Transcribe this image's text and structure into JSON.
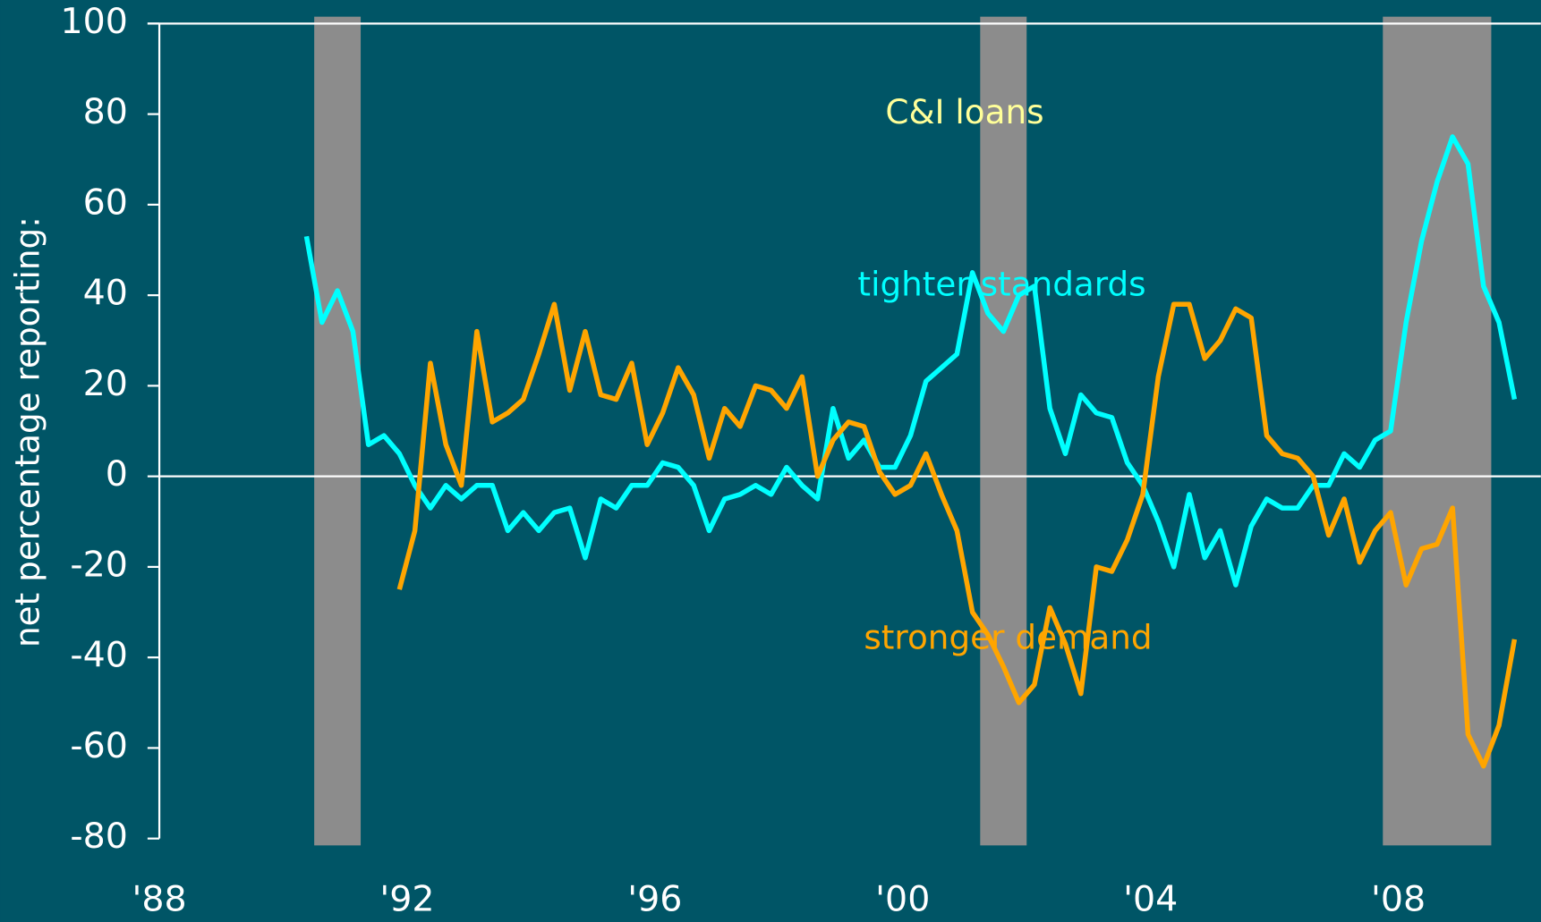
{
  "chart_data": {
    "type": "line",
    "ylabel": "net percentage reporting:",
    "annotations": [
      {
        "text": "C&I loans",
        "x": 2001.0,
        "y": 80,
        "color": "#ffff99"
      },
      {
        "text": "tighter standards",
        "x": 2001.6,
        "y": 42,
        "color": "#00ffff"
      },
      {
        "text": "stronger demand",
        "x": 2001.7,
        "y": -36,
        "color": "#ffa500"
      }
    ],
    "xlim": [
      1988,
      2010.3
    ],
    "ylim": [
      -80,
      100
    ],
    "xticks": [
      {
        "value": 1988,
        "label": "'88"
      },
      {
        "value": 1992,
        "label": "'92"
      },
      {
        "value": 1996,
        "label": "'96"
      },
      {
        "value": 2000,
        "label": "'00"
      },
      {
        "value": 2004,
        "label": "'04"
      },
      {
        "value": 2008,
        "label": "'08"
      }
    ],
    "yticks": [
      -80,
      -60,
      -40,
      -20,
      0,
      20,
      40,
      60,
      80,
      100
    ],
    "recessions": [
      {
        "start": 1990.5,
        "end": 1991.25
      },
      {
        "start": 2001.25,
        "end": 2002.0
      },
      {
        "start": 2007.75,
        "end": 2009.5
      }
    ],
    "recession_color": "#8c8c8c",
    "series": [
      {
        "name": "tighter standards",
        "color": "#00ffff",
        "x": [
          1990.375,
          1990.625,
          1990.875,
          1991.125,
          1991.375,
          1991.625,
          1991.875,
          1992.125,
          1992.375,
          1992.625,
          1992.875,
          1993.125,
          1993.375,
          1993.625,
          1993.875,
          1994.125,
          1994.375,
          1994.625,
          1994.875,
          1995.125,
          1995.375,
          1995.625,
          1995.875,
          1996.125,
          1996.375,
          1996.625,
          1996.875,
          1997.125,
          1997.375,
          1997.625,
          1997.875,
          1998.125,
          1998.375,
          1998.625,
          1998.875,
          1999.125,
          1999.375,
          1999.625,
          1999.875,
          2000.125,
          2000.375,
          2000.625,
          2000.875,
          2001.125,
          2001.375,
          2001.625,
          2001.875,
          2002.125,
          2002.375,
          2002.625,
          2002.875,
          2003.125,
          2003.375,
          2003.625,
          2003.875,
          2004.125,
          2004.375,
          2004.625,
          2004.875,
          2005.125,
          2005.375,
          2005.625,
          2005.875,
          2006.125,
          2006.375,
          2006.625,
          2006.875,
          2007.125,
          2007.375,
          2007.625,
          2007.875,
          2008.125,
          2008.375,
          2008.625,
          2008.875,
          2009.125,
          2009.375,
          2009.625,
          2009.875
        ],
        "values": [
          53,
          34,
          41,
          32,
          7,
          9,
          5,
          -2,
          -7,
          -2,
          -5,
          -2,
          -2,
          -12,
          -8,
          -12,
          -8,
          -7,
          -18,
          -5,
          -7,
          -2,
          -2,
          3,
          2,
          -2,
          -12,
          -5,
          -4,
          -2,
          -4,
          2,
          -2,
          -5,
          15,
          4,
          8,
          2,
          2,
          9,
          21,
          24,
          27,
          45,
          36,
          32,
          40,
          42,
          15,
          5,
          18,
          14,
          13,
          3,
          -2,
          -10,
          -20,
          -4,
          -18,
          -12,
          -24,
          -11,
          -5,
          -7,
          -7,
          -2,
          -2,
          5,
          2,
          8,
          10,
          34,
          52,
          65,
          75,
          69,
          42,
          34,
          17
        ]
      },
      {
        "name": "stronger demand",
        "color": "#ffa500",
        "x": [
          1991.875,
          1992.125,
          1992.375,
          1992.625,
          1992.875,
          1993.125,
          1993.375,
          1993.625,
          1993.875,
          1994.125,
          1994.375,
          1994.625,
          1994.875,
          1995.125,
          1995.375,
          1995.625,
          1995.875,
          1996.125,
          1996.375,
          1996.625,
          1996.875,
          1997.125,
          1997.375,
          1997.625,
          1997.875,
          1998.125,
          1998.375,
          1998.625,
          1998.875,
          1999.125,
          1999.375,
          1999.625,
          1999.875,
          2000.125,
          2000.375,
          2000.625,
          2000.875,
          2001.125,
          2001.375,
          2001.625,
          2001.875,
          2002.125,
          2002.375,
          2002.625,
          2002.875,
          2003.125,
          2003.375,
          2003.625,
          2003.875,
          2004.125,
          2004.375,
          2004.625,
          2004.875,
          2005.125,
          2005.375,
          2005.625,
          2005.875,
          2006.125,
          2006.375,
          2006.625,
          2006.875,
          2007.125,
          2007.375,
          2007.625,
          2007.875,
          2008.125,
          2008.375,
          2008.625,
          2008.875,
          2009.125,
          2009.375,
          2009.625,
          2009.875
        ],
        "values": [
          -25,
          -12,
          25,
          7,
          -2,
          32,
          12,
          14,
          17,
          27,
          38,
          19,
          32,
          18,
          17,
          25,
          7,
          14,
          24,
          18,
          4,
          15,
          11,
          20,
          19,
          15,
          22,
          0,
          8,
          12,
          11,
          1,
          -4,
          -2,
          5,
          -4,
          -12,
          -30,
          -35,
          -42,
          -50,
          -46,
          -29,
          -37,
          -48,
          -20,
          -21,
          -14,
          -4,
          22,
          38,
          38,
          26,
          30,
          37,
          35,
          9,
          5,
          4,
          0,
          -13,
          -5,
          -19,
          -12,
          -8,
          -24,
          -16,
          -15,
          -7,
          -57,
          -64,
          -55,
          -36
        ]
      }
    ]
  }
}
